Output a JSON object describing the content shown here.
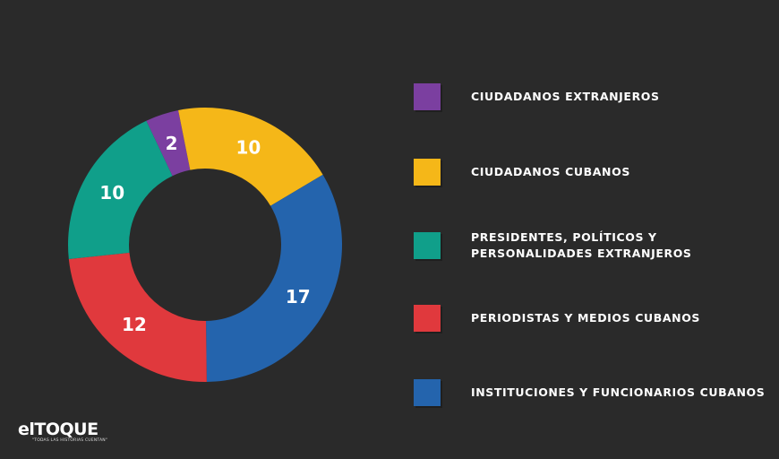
{
  "chart_data": {
    "type": "pie",
    "donut": true,
    "title": "",
    "slices": [
      {
        "label": "CIUDADANOS EXTRANJEROS",
        "value": 2,
        "color": "#7b3fa0"
      },
      {
        "label": "CIUDADANOS CUBANOS",
        "value": 10,
        "color": "#f5b718"
      },
      {
        "label": "INSTITUCIONES Y FUNCIONARIOS CUBANOS",
        "value": 17,
        "color": "#2464ad"
      },
      {
        "label": "PERIODISTAS Y MEDIOS CUBANOS",
        "value": 12,
        "color": "#e0393d"
      },
      {
        "label": "PRESIDENTES, POLÍTICOS Y PERSONALIDADES EXTRANJEROS",
        "value": 10,
        "color": "#109f8a"
      }
    ],
    "legend": {
      "placement": "right",
      "entries": [
        {
          "label": "CIUDADANOS EXTRANJEROS",
          "color": "#7b3fa0"
        },
        {
          "label": "CIUDADANOS CUBANOS",
          "color": "#f5b718"
        },
        {
          "label": "PRESIDENTES, POLÍTICOS Y\nPERSONALIDADES EXTRANJEROS",
          "color": "#109f8a"
        },
        {
          "label": "PERIODISTAS Y MEDIOS CUBANOS",
          "color": "#e0393d"
        },
        {
          "label": "INSTITUCIONES Y FUNCIONARIOS CUBANOS",
          "color": "#2464ad"
        }
      ]
    }
  },
  "logo": {
    "text": "elTOQUE",
    "tagline": "\"TODAS LAS HISTORIAS CUENTAN\""
  }
}
